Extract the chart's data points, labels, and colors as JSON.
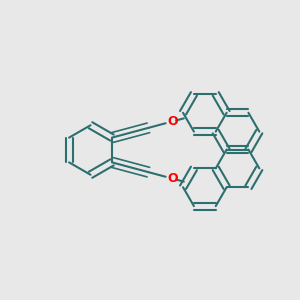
{
  "bg_color": "#e8e8e8",
  "bond_color": "#2d6e6e",
  "o_color": "#ff0000",
  "line_width": 1.5,
  "figsize": [
    3.0,
    3.0
  ],
  "dpi": 100
}
